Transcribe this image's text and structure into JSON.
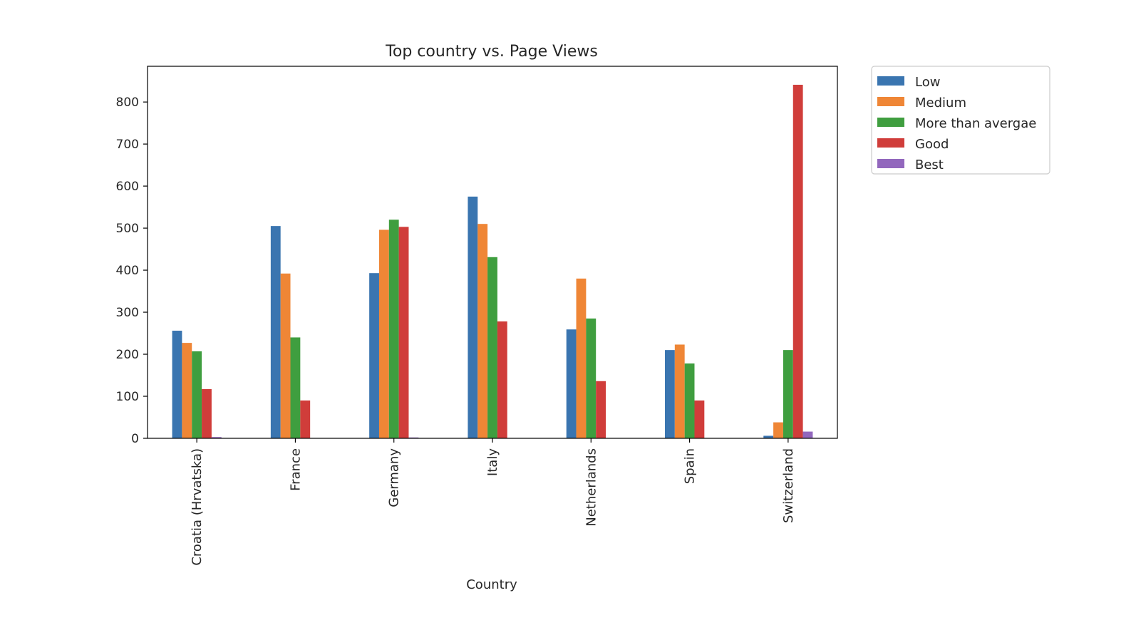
{
  "chart_data": {
    "type": "bar",
    "title": "Top country vs. Page Views",
    "xlabel": "Country",
    "ylabel": "",
    "ylim": [
      0,
      885
    ],
    "yticks": [
      0,
      100,
      200,
      300,
      400,
      500,
      600,
      700,
      800
    ],
    "grid": false,
    "legend_position": "outside-top-right",
    "categories": [
      "Croatia (Hrvatska)",
      "France",
      "Germany",
      "Italy",
      "Netherlands",
      "Spain",
      "Switzerland"
    ],
    "series": [
      {
        "name": "Low",
        "color": "#3a75b0",
        "values": [
          256,
          505,
          393,
          575,
          259,
          210,
          6
        ]
      },
      {
        "name": "Medium",
        "color": "#ef8636",
        "values": [
          227,
          392,
          496,
          510,
          380,
          223,
          38
        ]
      },
      {
        "name": "More than avergae",
        "color": "#3f9e3f",
        "values": [
          207,
          240,
          520,
          431,
          285,
          178,
          210
        ]
      },
      {
        "name": "Good",
        "color": "#d03d3a",
        "values": [
          117,
          90,
          503,
          278,
          136,
          90,
          841
        ]
      },
      {
        "name": "Best",
        "color": "#9267bd",
        "values": [
          3,
          0,
          2,
          0,
          0,
          0,
          16
        ]
      }
    ]
  }
}
